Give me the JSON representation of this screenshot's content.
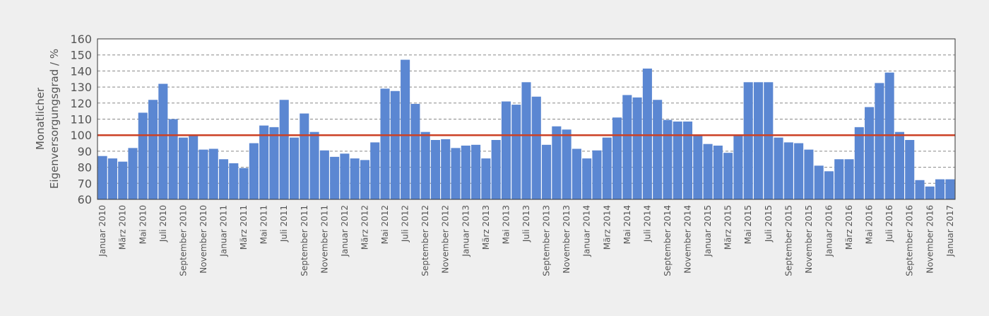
{
  "chart_data": {
    "type": "bar",
    "ylabel": [
      "Monatlicher",
      "Eigenversorgungsgrad / %"
    ],
    "color": "#5b87d2",
    "categories": [
      "Januar 2010",
      null,
      "März 2010",
      null,
      "Mai 2010",
      null,
      "Juli 2010",
      null,
      "September 2010",
      null,
      "November 2010",
      null,
      "Januar 2011",
      null,
      "März 2011",
      null,
      "Mai 2011",
      null,
      "Juli 2011",
      null,
      "September 2011",
      null,
      "November 2011",
      null,
      "Januar 2012",
      null,
      "März 2012",
      null,
      "Mai 2012",
      null,
      "Juli 2012",
      null,
      "September 2012",
      null,
      "November 2012",
      null,
      "Januar 2013",
      null,
      "März 2013",
      null,
      "Mai 2013",
      null,
      "Juli 2013",
      null,
      "September 2013",
      null,
      "November 2013",
      null,
      "Januar 2014",
      null,
      "März 2014",
      null,
      "Mai 2014",
      null,
      "Juli 2014",
      null,
      "September 2014",
      null,
      "November 2014",
      null,
      "Januar 2015",
      null,
      "März 2015",
      null,
      "Mai 2015",
      null,
      "Juli 2015",
      null,
      "September 2015",
      null,
      "November 2015",
      null,
      "Januar 2016",
      null,
      "März 2016",
      null,
      "Mai 2016",
      null,
      "Juli 2016",
      null,
      "September 2016",
      null,
      "November 2016",
      null,
      "Januar 2017"
    ],
    "values": [
      87,
      85.5,
      83.5,
      92,
      114,
      122,
      132,
      110,
      98.5,
      99.5,
      91,
      91.5,
      85,
      82.5,
      79.5,
      95,
      106,
      105,
      122,
      98.5,
      113.5,
      102,
      90.5,
      86.5,
      88.5,
      85.5,
      84.5,
      95.5,
      129,
      127.5,
      147,
      119.5,
      102,
      97,
      97.5,
      92,
      93.5,
      94,
      85.5,
      97,
      121,
      119,
      133,
      124,
      94,
      105.5,
      103.5,
      91.5,
      85.5,
      90.5,
      98.5,
      111,
      125,
      123.5,
      141.5,
      122,
      109.5,
      108.5,
      108.5,
      100,
      94.5,
      93.5,
      89,
      99.5,
      133,
      133,
      133,
      98.5,
      95.5,
      95,
      91,
      81,
      77.5,
      85,
      85,
      105,
      117.5,
      132.5,
      139,
      102,
      97,
      72,
      68,
      72.5,
      72.5
    ],
    "ylim": [
      60,
      160
    ],
    "yticks": [
      60,
      70,
      80,
      90,
      100,
      110,
      120,
      130,
      140,
      150,
      160
    ],
    "grid": true,
    "reference_line": {
      "value": 100,
      "color": "#cc4125"
    }
  }
}
